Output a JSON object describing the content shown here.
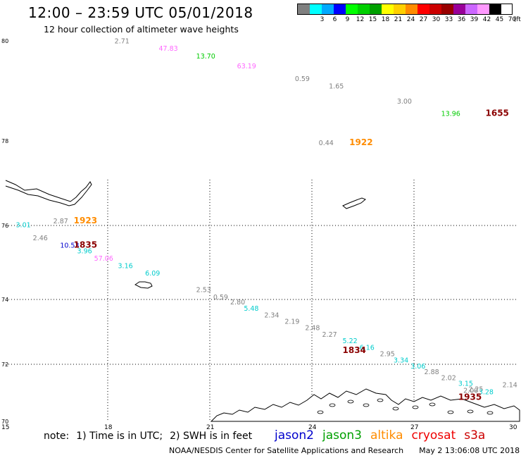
{
  "header": {
    "title": "12:00 – 23:59 UTC 05/01/2018",
    "subtitle": "12 hour collection of altimeter wave heights"
  },
  "colorbar": {
    "unit": "(ft)",
    "swatches": [
      {
        "label": "",
        "color": "#808080"
      },
      {
        "label": "3",
        "color": "#00ffff"
      },
      {
        "label": "6",
        "color": "#00aaff"
      },
      {
        "label": "9",
        "color": "#0000ff"
      },
      {
        "label": "12",
        "color": "#00ff00"
      },
      {
        "label": "15",
        "color": "#00d000"
      },
      {
        "label": "18",
        "color": "#00a000"
      },
      {
        "label": "21",
        "color": "#ffff00"
      },
      {
        "label": "24",
        "color": "#ffd000"
      },
      {
        "label": "27",
        "color": "#ff8c00"
      },
      {
        "label": "30",
        "color": "#ff0000"
      },
      {
        "label": "33",
        "color": "#cc0000"
      },
      {
        "label": "36",
        "color": "#990000"
      },
      {
        "label": "39",
        "color": "#990099"
      },
      {
        "label": "42",
        "color": "#cc66ff"
      },
      {
        "label": "45",
        "color": "#ff99ff"
      },
      {
        "label": "70",
        "color": "#000000"
      }
    ]
  },
  "map": {
    "lon_ticks": [
      "15",
      "18",
      "21",
      "24",
      "27",
      "30"
    ],
    "lat_ticks": [
      "80",
      "78",
      "76",
      "74",
      "72",
      "70"
    ],
    "colors": {
      "gray": "#808080",
      "cyan": "#00cccc",
      "blue": "#0000cc",
      "green": "#00cc00",
      "pink": "#ff66ff",
      "orange": "#ff8c00",
      "darkred": "#8b0000"
    },
    "points": [
      {
        "text": "2.71",
        "lon": 18.2,
        "lat": 79.95,
        "c": "gray"
      },
      {
        "text": "47.83",
        "lon": 19.5,
        "lat": 79.8,
        "c": "pink"
      },
      {
        "text": "13.70",
        "lon": 20.6,
        "lat": 79.65,
        "c": "green"
      },
      {
        "text": "63.19",
        "lon": 21.8,
        "lat": 79.45,
        "c": "pink"
      },
      {
        "text": "0.59",
        "lon": 23.5,
        "lat": 79.2,
        "c": "gray"
      },
      {
        "text": "1.65",
        "lon": 24.5,
        "lat": 79.05,
        "c": "gray"
      },
      {
        "text": "3.00",
        "lon": 26.5,
        "lat": 78.75,
        "c": "gray"
      },
      {
        "text": "13.96",
        "lon": 27.8,
        "lat": 78.5,
        "c": "green"
      },
      {
        "text": "0.44",
        "lon": 24.2,
        "lat": 77.9,
        "c": "gray"
      },
      {
        "text": "2.87",
        "lon": 16.4,
        "lat": 76.05,
        "c": "gray"
      },
      {
        "text": "3.01",
        "lon": 15.3,
        "lat": 75.95,
        "c": "cyan"
      },
      {
        "text": "2.46",
        "lon": 15.8,
        "lat": 75.6,
        "c": "gray"
      },
      {
        "text": "10.53",
        "lon": 16.6,
        "lat": 75.4,
        "c": "blue"
      },
      {
        "text": "3.96",
        "lon": 17.1,
        "lat": 75.25,
        "c": "cyan"
      },
      {
        "text": "57.06",
        "lon": 17.6,
        "lat": 75.05,
        "c": "pink"
      },
      {
        "text": "3.16",
        "lon": 18.3,
        "lat": 74.85,
        "c": "cyan"
      },
      {
        "text": "6.09",
        "lon": 19.1,
        "lat": 74.65,
        "c": "cyan"
      },
      {
        "text": "2.53",
        "lon": 20.6,
        "lat": 74.2,
        "c": "gray"
      },
      {
        "text": "0.59",
        "lon": 21.1,
        "lat": 74.0,
        "c": "gray"
      },
      {
        "text": "2.80",
        "lon": 21.6,
        "lat": 73.85,
        "c": "gray"
      },
      {
        "text": "5.48",
        "lon": 22.0,
        "lat": 73.65,
        "c": "cyan"
      },
      {
        "text": "2.34",
        "lon": 22.6,
        "lat": 73.45,
        "c": "gray"
      },
      {
        "text": "2.19",
        "lon": 23.2,
        "lat": 73.25,
        "c": "gray"
      },
      {
        "text": "2.48",
        "lon": 23.8,
        "lat": 73.05,
        "c": "gray"
      },
      {
        "text": "2.27",
        "lon": 24.3,
        "lat": 72.85,
        "c": "gray"
      },
      {
        "text": "5.22",
        "lon": 24.9,
        "lat": 72.65,
        "c": "cyan"
      },
      {
        "text": "6.16",
        "lon": 25.4,
        "lat": 72.45,
        "c": "cyan"
      },
      {
        "text": "2.95",
        "lon": 26.0,
        "lat": 72.25,
        "c": "gray"
      },
      {
        "text": "3.34",
        "lon": 26.4,
        "lat": 72.05,
        "c": "cyan"
      },
      {
        "text": "3.06",
        "lon": 26.9,
        "lat": 71.85,
        "c": "cyan"
      },
      {
        "text": "2.88",
        "lon": 27.3,
        "lat": 71.65,
        "c": "gray"
      },
      {
        "text": "2.02",
        "lon": 27.8,
        "lat": 71.45,
        "c": "gray"
      },
      {
        "text": "3.15",
        "lon": 28.3,
        "lat": 71.25,
        "c": "cyan"
      },
      {
        "text": "2.25",
        "lon": 28.6,
        "lat": 71.05,
        "c": "gray"
      },
      {
        "text": "3.28",
        "lon": 28.9,
        "lat": 70.95,
        "c": "cyan"
      },
      {
        "text": "2.00",
        "lon": 28.45,
        "lat": 71.0,
        "c": "gray"
      },
      {
        "text": "2.14",
        "lon": 29.6,
        "lat": 71.2,
        "c": "gray"
      }
    ],
    "times": [
      {
        "text": "1655",
        "lon": 29.1,
        "lat": 78.5,
        "c": "darkred"
      },
      {
        "text": "1922",
        "lon": 25.1,
        "lat": 77.9,
        "c": "orange"
      },
      {
        "text": "1923",
        "lon": 17.0,
        "lat": 76.05,
        "c": "orange"
      },
      {
        "text": "1835",
        "lon": 17.0,
        "lat": 75.4,
        "c": "darkred"
      },
      {
        "text": "1834",
        "lon": 24.9,
        "lat": 72.35,
        "c": "darkred"
      },
      {
        "text": "1935",
        "lon": 28.3,
        "lat": 70.75,
        "c": "darkred"
      }
    ]
  },
  "notes": {
    "note_prefix": "note:",
    "note1": "1) Time is in UTC;",
    "note2": "2) SWH is in feet"
  },
  "satellites": [
    {
      "name": "jason2",
      "color": "#0000cc"
    },
    {
      "name": "jason3",
      "color": "#00a000"
    },
    {
      "name": "altika",
      "color": "#ff8c00"
    },
    {
      "name": "cryosat",
      "color": "#ee0000"
    },
    {
      "name": "s3a",
      "color": "#cc0000"
    }
  ],
  "footer": {
    "org": "NOAA/NESDIS Center for Satellite Applications and Research",
    "timestamp": "May  2 13:06:08 UTC 2018"
  }
}
